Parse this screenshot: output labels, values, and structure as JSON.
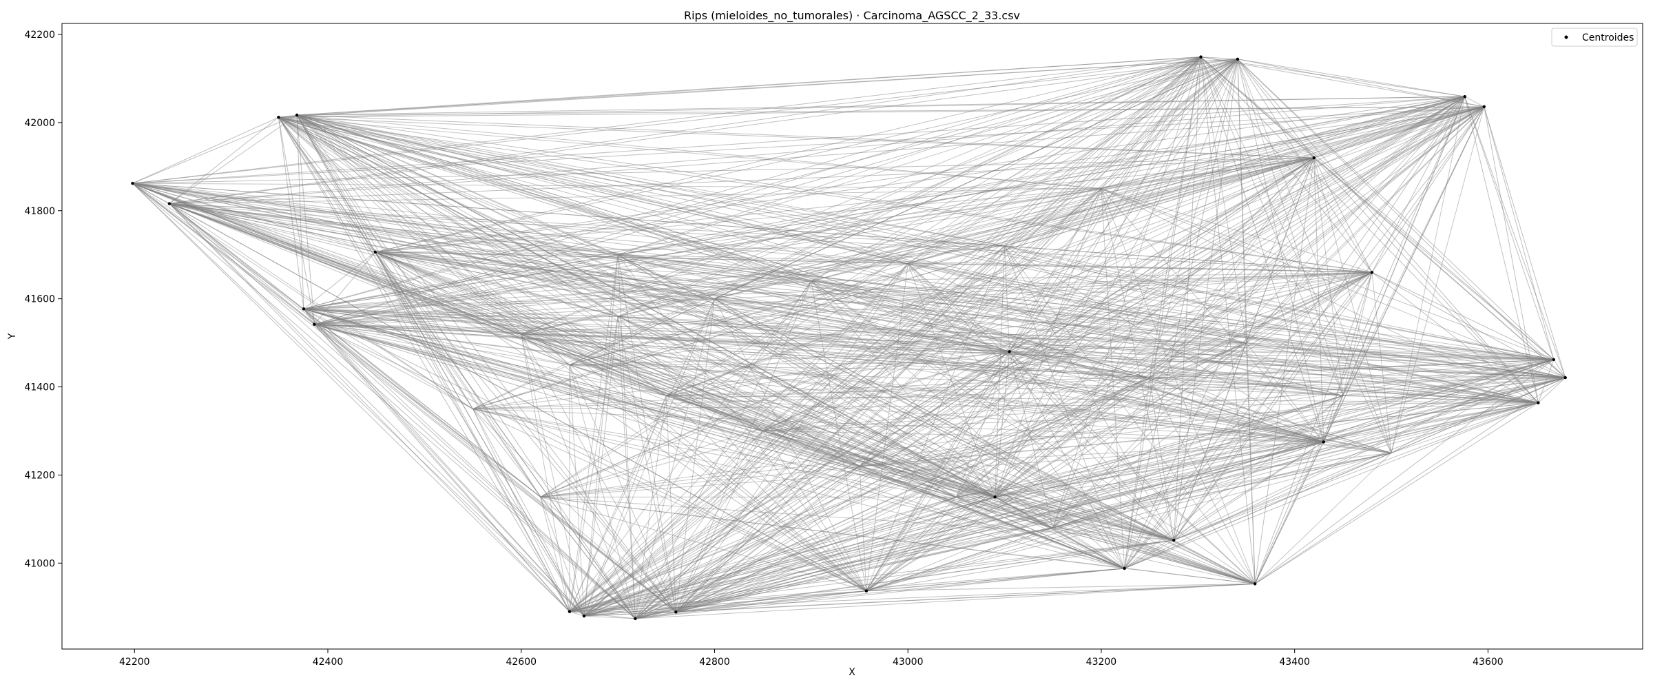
{
  "chart_data": {
    "type": "scatter",
    "title": "Rips (mieloides_no_tumorales) · Carcinoma_AGSCC_2_33.csv",
    "xlabel": "X",
    "ylabel": "Y",
    "xlim": [
      42125,
      43760
    ],
    "ylim": [
      40805,
      42225
    ],
    "xticks": [
      42200,
      42400,
      42600,
      42800,
      43000,
      43200,
      43400,
      43600
    ],
    "yticks": [
      41000,
      41200,
      41400,
      41600,
      41800,
      42000,
      42200
    ],
    "grid": false,
    "legend": {
      "position": "top-right",
      "entries": [
        "Centroides"
      ]
    },
    "series": [
      {
        "name": "Centroides",
        "color": "#000000",
        "points": [
          [
            42198,
            41862
          ],
          [
            42236,
            41816
          ],
          [
            42349,
            42012
          ],
          [
            42368,
            42017
          ],
          [
            42375,
            41577
          ],
          [
            42386,
            41542
          ],
          [
            42449,
            41706
          ],
          [
            42650,
            40890
          ],
          [
            42665,
            40880
          ],
          [
            42718,
            40874
          ],
          [
            42760,
            40889
          ],
          [
            42957,
            40937
          ],
          [
            43224,
            40988
          ],
          [
            43275,
            41052
          ],
          [
            43359,
            40953
          ],
          [
            43303,
            42149
          ],
          [
            43341,
            42144
          ],
          [
            43576,
            42059
          ],
          [
            43596,
            42036
          ],
          [
            43652,
            41364
          ],
          [
            43668,
            41462
          ],
          [
            43680,
            41421
          ],
          [
            43430,
            41275
          ],
          [
            43480,
            41660
          ],
          [
            43420,
            41920
          ],
          [
            43105,
            41480
          ],
          [
            43090,
            41150
          ]
        ]
      }
    ],
    "edges": {
      "color": "#808080",
      "alpha": 0.5,
      "description": "Rips complex edges between centroids"
    }
  }
}
